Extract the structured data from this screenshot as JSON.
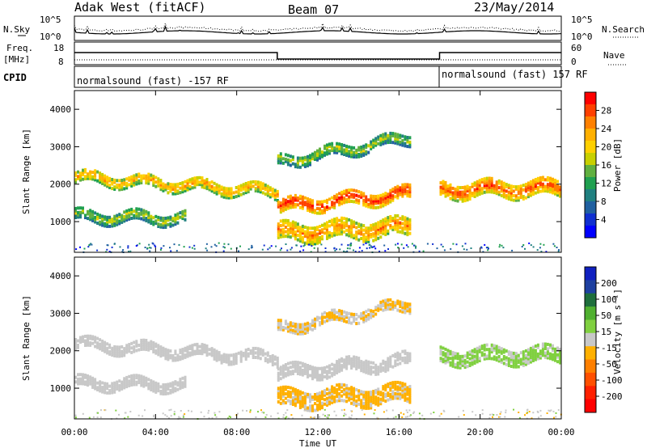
{
  "header": {
    "radar": "Adak West (fitACF)",
    "beam": "Beam 07",
    "date": "23/May/2014"
  },
  "top_panels": {
    "nsky_label": "N.Sky",
    "nsky_ticks": [
      "10^5",
      "10^0"
    ],
    "nsearch_label": "N.Search",
    "nsearch_ticks": [
      "10^5",
      "10^0"
    ],
    "freq_label": "Freq.",
    "freq_unit": "[MHz]",
    "freq_ticks": [
      "18",
      "8"
    ],
    "nave_label": "Nave",
    "nave_ticks": [
      "60",
      "0"
    ],
    "cpid_label": "CPID",
    "cpid_segments": [
      "normalsound (fast) -157 RF",
      "normalsound (fast) 157 RF"
    ]
  },
  "colorbars": {
    "power": {
      "label": "Power [dB]",
      "ticks": [
        "28",
        "24",
        "20",
        "16",
        "12",
        "8",
        "4"
      ],
      "colors": [
        "#ff0000",
        "#ff4000",
        "#ff8000",
        "#ffb000",
        "#ffd000",
        "#c8d000",
        "#60b040",
        "#20a050",
        "#208080",
        "#2060a0",
        "#1030d0",
        "#0000ff"
      ]
    },
    "velocity": {
      "label": "Velocity [m s⁻¹]",
      "ticks": [
        "200",
        "100",
        "50",
        "15",
        "-15",
        "-50",
        "-100",
        "-200"
      ],
      "colors": [
        "#1020c0",
        "#1e40a0",
        "#1e6e3c",
        "#50b030",
        "#80d040",
        "#c8c8c8",
        "#ffb000",
        "#ff8000",
        "#ff5000",
        "#ff2000",
        "#ff0000"
      ]
    }
  },
  "axes": {
    "ylabel": "Slant Range [km]",
    "xlabel": "Time UT",
    "yticks": [
      "4000",
      "3000",
      "2000",
      "1000"
    ],
    "xticks": [
      "00:00",
      "04:00",
      "08:00",
      "12:00",
      "16:00",
      "20:00",
      "00:00"
    ]
  },
  "chart_data": [
    {
      "type": "heatmap",
      "name": "Power",
      "xlabel": "Time UT",
      "ylabel": "Slant Range [km]",
      "xlim": [
        0,
        24
      ],
      "ylim": [
        180,
        4500
      ],
      "colorbar_label": "Power [dB]",
      "colorbar_range": [
        0,
        30
      ],
      "bands": [
        {
          "t0": 0.0,
          "t1": 10.0,
          "r_start": 2250,
          "r_end": 1850,
          "width": 300,
          "power": 16
        },
        {
          "t0": 0.0,
          "t1": 5.5,
          "r_start": 1200,
          "r_end": 1150,
          "width": 300,
          "power": 10
        },
        {
          "t0": 10.0,
          "t1": 16.5,
          "r_start": 1450,
          "r_end": 1800,
          "width": 350,
          "power": 22
        },
        {
          "t0": 10.0,
          "t1": 16.5,
          "r_start": 750,
          "r_end": 900,
          "width": 450,
          "power": 18
        },
        {
          "t0": 10.0,
          "t1": 16.5,
          "r_start": 2650,
          "r_end": 3300,
          "width": 300,
          "power": 10
        },
        {
          "t0": 18.0,
          "t1": 24.0,
          "r_start": 1900,
          "r_end": 1950,
          "width": 400,
          "power": 20
        }
      ]
    },
    {
      "type": "heatmap",
      "name": "Velocity",
      "xlabel": "Time UT",
      "ylabel": "Slant Range [km]",
      "xlim": [
        0,
        24
      ],
      "ylim": [
        180,
        4500
      ],
      "colorbar_label": "Velocity [m s⁻¹]",
      "colorbar_range": [
        -200,
        200
      ],
      "bands": [
        {
          "t0": 0.0,
          "t1": 10.0,
          "r_start": 2250,
          "r_end": 1850,
          "width": 300,
          "velocity": 0
        },
        {
          "t0": 0.0,
          "t1": 5.5,
          "r_start": 1200,
          "r_end": 1150,
          "width": 300,
          "velocity": 0
        },
        {
          "t0": 10.0,
          "t1": 16.5,
          "r_start": 1450,
          "r_end": 1800,
          "width": 350,
          "velocity": 0
        },
        {
          "t0": 10.0,
          "t1": 16.5,
          "r_start": 750,
          "r_end": 900,
          "width": 450,
          "velocity": -30
        },
        {
          "t0": 10.0,
          "t1": 16.5,
          "r_start": 2650,
          "r_end": 3300,
          "width": 300,
          "velocity": -20
        },
        {
          "t0": 18.0,
          "t1": 24.0,
          "r_start": 1900,
          "r_end": 1950,
          "width": 400,
          "velocity": 30
        }
      ]
    }
  ]
}
